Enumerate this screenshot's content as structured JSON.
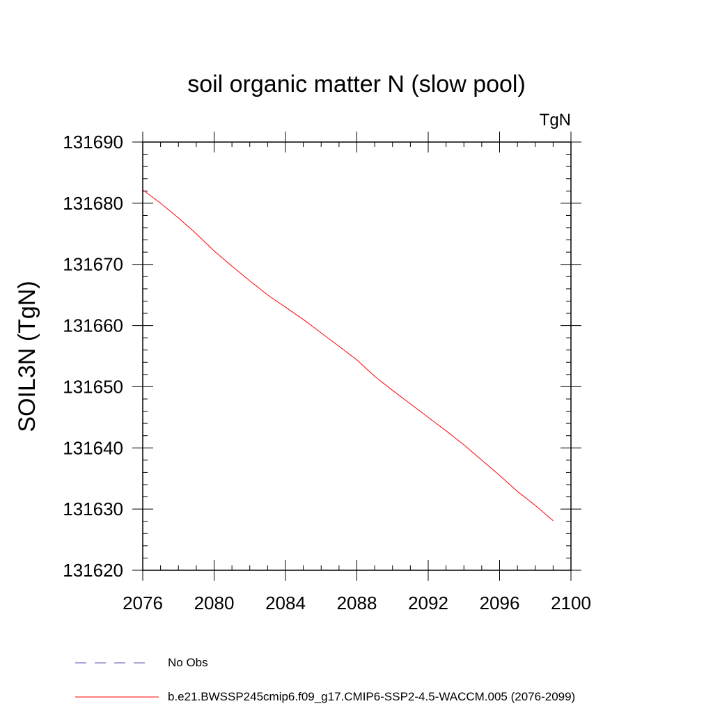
{
  "chart_data": {
    "type": "line",
    "title": "soil organic matter N (slow pool)",
    "units_label": "TgN",
    "ylabel": "SOIL3N  (TgN)",
    "xlabel": "",
    "xlim": [
      2076,
      2100
    ],
    "ylim": [
      131620,
      131690
    ],
    "x_ticks": [
      2076,
      2080,
      2084,
      2088,
      2092,
      2096,
      2100
    ],
    "y_ticks": [
      131620,
      131630,
      131640,
      131650,
      131660,
      131670,
      131680,
      131690
    ],
    "x_minor_step": 1,
    "y_minor_step": 2,
    "grid": false,
    "legend_position": "bottom-left",
    "series": [
      {
        "name": "b.e21.BWSSP245cmip6.f09_g17.CMIP6-SSP2-4.5-WACCM.005 (2076-2099)",
        "color": "#ff0000",
        "style": "solid",
        "x": [
          2076,
          2077,
          2078,
          2079,
          2080,
          2081,
          2082,
          2083,
          2084,
          2085,
          2086,
          2087,
          2088,
          2089,
          2090,
          2091,
          2092,
          2093,
          2094,
          2095,
          2096,
          2097,
          2098,
          2099
        ],
        "y": [
          131682.2,
          131680.0,
          131677.6,
          131675.0,
          131672.2,
          131669.7,
          131667.3,
          131665.0,
          131663.0,
          131661.0,
          131658.8,
          131656.6,
          131654.4,
          131651.7,
          131649.4,
          131647.2,
          131645.0,
          131642.8,
          131640.5,
          131638.0,
          131635.5,
          131632.9,
          131630.6,
          131628.1
        ]
      }
    ],
    "legend": [
      {
        "label": "No Obs",
        "color": "#5a4fb0",
        "style": "dashed"
      },
      {
        "label": "b.e21.BWSSP245cmip6.f09_g17.CMIP6-SSP2-4.5-WACCM.005 (2076-2099)",
        "color": "#ff0000",
        "style": "solid"
      }
    ]
  }
}
